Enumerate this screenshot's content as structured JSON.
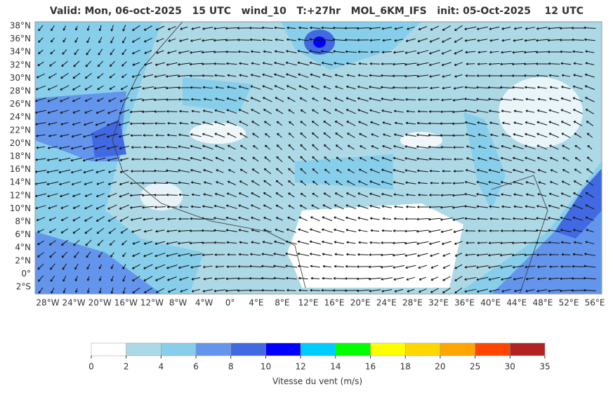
{
  "title": "Valid: Mon, 06-oct-2025   15 UTC   wind_10   T:+27hr   MOL_6KM_IFS   init: 05-Oct-2025    12 UTC",
  "lat_labels": [
    "38°N",
    "36°N",
    "34°N",
    "32°N",
    "30°N",
    "28°N",
    "26°N",
    "24°N",
    "22°N",
    "20°N",
    "18°N",
    "16°N",
    "14°N",
    "12°N",
    "10°N",
    "8°N",
    "6°N",
    "4°N",
    "2°N",
    "0°",
    "2°S"
  ],
  "lon_labels": [
    "28°W",
    "24°W",
    "20°W",
    "16°W",
    "12°W",
    "8°W",
    "4°W",
    "0°",
    "4°E",
    "8°E",
    "12°E",
    "16°E",
    "20°E",
    "24°E",
    "28°E",
    "32°E",
    "36°E",
    "40°E",
    "44°E",
    "48°E",
    "52°E",
    "56°E"
  ],
  "colorbar": {
    "levels": [
      0,
      2,
      4,
      6,
      8,
      10,
      12,
      14,
      16,
      18,
      20,
      25,
      30,
      35
    ],
    "colors": [
      "#ffffff",
      "#add8e6",
      "#87ceeb",
      "#6495ed",
      "#4169e1",
      "#0000ff",
      "#00ccff",
      "#00ff00",
      "#ffff00",
      "#ffd700",
      "#ffa500",
      "#ff4500",
      "#b22222"
    ],
    "label": "Vitesse du vent (m/s)"
  }
}
